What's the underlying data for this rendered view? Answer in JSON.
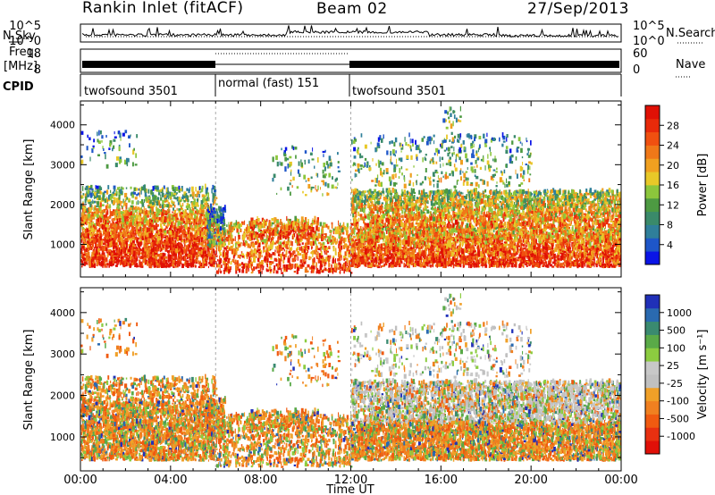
{
  "header": {
    "station": "Rankin Inlet (fitACF)",
    "beam": "Beam 02",
    "date": "27/Sep/2013"
  },
  "noise_panel": {
    "left_label": "N.Sky",
    "right_label": "N.Search",
    "ytick_top": "10^5",
    "ytick_bottom": "10^0",
    "ytick_top_r": "10^5",
    "ytick_bottom_r": "10^0"
  },
  "freq_panel": {
    "left_label_1": "Freq.",
    "left_label_2": "[MHz]",
    "ytick_top": "18",
    "ytick_bottom": "8",
    "ytick_top_r": "60",
    "ytick_bottom_r": "0",
    "right_label": "Nave"
  },
  "cpid_panel": {
    "label": "CPID",
    "segments": [
      {
        "name": "twofsound 3501",
        "start_h": 0,
        "end_h": 6
      },
      {
        "name": "normal (fast) 151",
        "start_h": 6,
        "end_h": 12
      },
      {
        "name": "twofsound 3501",
        "start_h": 12,
        "end_h": 24
      }
    ]
  },
  "chart_data": [
    {
      "type": "heatmap",
      "name": "power",
      "ylabel": "Slant Range [km]",
      "ylim": [
        180,
        4600
      ],
      "yticks": [
        "1000",
        "2000",
        "3000",
        "4000"
      ],
      "ytick_values": [
        1000,
        2000,
        3000,
        4000
      ],
      "colorbar_label": "Power [dB]",
      "colorbar_ticks": [
        "4",
        "8",
        "12",
        "16",
        "20",
        "24",
        "28"
      ],
      "colorbar_colors": [
        "#0a14e6",
        "#1e56c8",
        "#2f7f9a",
        "#3a8a6a",
        "#4d9a42",
        "#8cc63c",
        "#e8c828",
        "#f0a020",
        "#f07818",
        "#f05010",
        "#e82a0a",
        "#e01005"
      ],
      "colorbar_range": [
        0,
        32
      ]
    },
    {
      "type": "heatmap",
      "name": "velocity",
      "ylabel": "Slant Range [km]",
      "ylim": [
        180,
        4600
      ],
      "yticks": [
        "1000",
        "2000",
        "3000",
        "4000"
      ],
      "ytick_values": [
        1000,
        2000,
        3000,
        4000
      ],
      "colorbar_label": "Velocity [m s⁻¹]",
      "colorbar_ticks": [
        "1000",
        "500",
        "100",
        "25",
        "-25",
        "-100",
        "-500",
        "-1000"
      ],
      "colorbar_colors": [
        "#2030b8",
        "#2a6ab0",
        "#3a8a70",
        "#5aaa48",
        "#8ccc40",
        "#c8c8c8",
        "#c0c0c0",
        "#f0a028",
        "#f08020",
        "#f05a10",
        "#e83010",
        "#e01008"
      ]
    }
  ],
  "xaxis": {
    "label": "Time UT",
    "ticks": [
      "00:00",
      "04:00",
      "08:00",
      "12:00",
      "16:00",
      "20:00",
      "00:00"
    ],
    "tick_hours": [
      0,
      4,
      8,
      12,
      16,
      20,
      24
    ]
  },
  "colors": {
    "power_scale": [
      "#0a14e6",
      "#1e56c8",
      "#2f7f9a",
      "#3a8a6a",
      "#4d9a42",
      "#8cc63c",
      "#e8c828",
      "#f0a020",
      "#f07818",
      "#f05010",
      "#e82a0a",
      "#e01005"
    ],
    "velocity_scale": [
      "#2030b8",
      "#2a6ab0",
      "#3a8a70",
      "#5aaa48",
      "#8ccc40",
      "#c8c8c8",
      "#c0c0c0",
      "#f0a028",
      "#f08020",
      "#f05a10",
      "#e83010",
      "#e01008"
    ]
  }
}
